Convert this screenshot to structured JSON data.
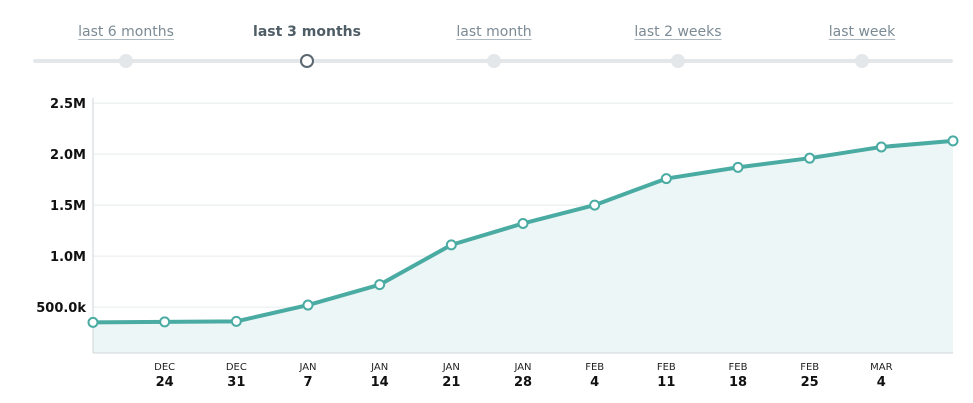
{
  "range_selector": {
    "options": [
      {
        "label": "last 6 months",
        "active": false
      },
      {
        "label": "last 3 months",
        "active": true
      },
      {
        "label": "last month",
        "active": false
      },
      {
        "label": "last 2 weeks",
        "active": false
      },
      {
        "label": "last week",
        "active": false
      }
    ]
  },
  "colors": {
    "line": "#4aaba3",
    "area": "#ecf6f6",
    "grid": "#e8ecee",
    "axis": "#cfd6da",
    "track": "#e3e7ea"
  },
  "chart_data": {
    "type": "area",
    "x": [
      "Dec 17",
      "Dec 24",
      "Dec 31",
      "Jan 7",
      "Jan 14",
      "Jan 21",
      "Jan 28",
      "Feb 4",
      "Feb 11",
      "Feb 18",
      "Feb 25",
      "Mar 4",
      "Mar 11"
    ],
    "x_tick_labels": [
      {
        "month": "DEC",
        "day": "24"
      },
      {
        "month": "DEC",
        "day": "31"
      },
      {
        "month": "JAN",
        "day": "7"
      },
      {
        "month": "JAN",
        "day": "14"
      },
      {
        "month": "JAN",
        "day": "21"
      },
      {
        "month": "JAN",
        "day": "28"
      },
      {
        "month": "FEB",
        "day": "4"
      },
      {
        "month": "FEB",
        "day": "11"
      },
      {
        "month": "FEB",
        "day": "18"
      },
      {
        "month": "FEB",
        "day": "25"
      },
      {
        "month": "MAR",
        "day": "4"
      }
    ],
    "values": [
      350000,
      355000,
      360000,
      520000,
      720000,
      1110000,
      1320000,
      1500000,
      1760000,
      1870000,
      1960000,
      2070000,
      2130000
    ],
    "y_ticks": [
      500000,
      1000000,
      1500000,
      2000000,
      2500000
    ],
    "y_tick_labels": [
      "500.0k",
      "1.0M",
      "1.5M",
      "2.0M",
      "2.5M"
    ],
    "ylim": [
      50000,
      2550000
    ],
    "grid": true,
    "legend": "none"
  }
}
